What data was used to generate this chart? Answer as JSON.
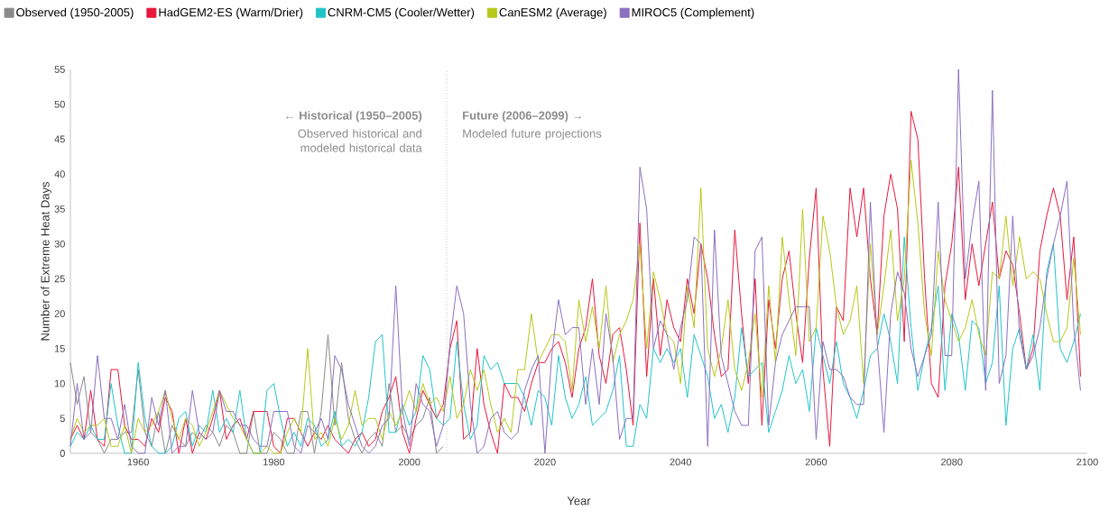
{
  "chart_data": {
    "type": "line",
    "xlabel": "Year",
    "ylabel": "Number of Extreme Heat Days",
    "x": [
      1950,
      1951,
      1952,
      1953,
      1954,
      1955,
      1956,
      1957,
      1958,
      1959,
      1960,
      1961,
      1962,
      1963,
      1964,
      1965,
      1966,
      1967,
      1968,
      1969,
      1970,
      1971,
      1972,
      1973,
      1974,
      1975,
      1976,
      1977,
      1978,
      1979,
      1980,
      1981,
      1982,
      1983,
      1984,
      1985,
      1986,
      1987,
      1988,
      1989,
      1990,
      1991,
      1992,
      1993,
      1994,
      1995,
      1996,
      1997,
      1998,
      1999,
      2000,
      2001,
      2002,
      2003,
      2004,
      2005,
      2006,
      2007,
      2008,
      2009,
      2010,
      2011,
      2012,
      2013,
      2014,
      2015,
      2016,
      2017,
      2018,
      2019,
      2020,
      2021,
      2022,
      2023,
      2024,
      2025,
      2026,
      2027,
      2028,
      2029,
      2030,
      2031,
      2032,
      2033,
      2034,
      2035,
      2036,
      2037,
      2038,
      2039,
      2040,
      2041,
      2042,
      2043,
      2044,
      2045,
      2046,
      2047,
      2048,
      2049,
      2050,
      2051,
      2052,
      2053,
      2054,
      2055,
      2056,
      2057,
      2058,
      2059,
      2060,
      2061,
      2062,
      2063,
      2064,
      2065,
      2066,
      2067,
      2068,
      2069,
      2070,
      2071,
      2072,
      2073,
      2074,
      2075,
      2076,
      2077,
      2078,
      2079,
      2080,
      2081,
      2082,
      2083,
      2084,
      2085,
      2086,
      2087,
      2088,
      2089,
      2090,
      2091,
      2092,
      2093,
      2094,
      2095,
      2096,
      2097,
      2098,
      2099
    ],
    "series": [
      {
        "name": "Observed (1950-2005)",
        "color": "#8a8a8a",
        "x": [
          1950,
          1951,
          1952,
          1953,
          1954,
          1955,
          1956,
          1957,
          1958,
          1959,
          1960,
          1961,
          1962,
          1963,
          1964,
          1965,
          1966,
          1967,
          1968,
          1969,
          1970,
          1971,
          1972,
          1973,
          1974,
          1975,
          1976,
          1977,
          1978,
          1979,
          1980,
          1981,
          1982,
          1983,
          1984,
          1985,
          1986,
          1987,
          1988,
          1989,
          1990,
          1991,
          1992,
          1993,
          1994,
          1995,
          1996,
          1997,
          1998,
          1999,
          2000,
          2001,
          2002,
          2003,
          2004,
          2005
        ],
        "values": [
          13,
          7,
          11,
          3,
          2,
          0,
          2,
          2,
          3,
          3,
          12,
          3,
          1,
          6,
          0,
          4,
          2,
          1,
          3,
          2,
          4,
          3,
          1,
          4,
          3,
          0,
          0,
          6,
          0,
          0,
          3,
          2,
          0,
          0,
          6,
          6,
          0,
          6,
          17,
          4,
          13,
          5,
          2,
          0,
          2,
          3,
          1,
          10,
          3,
          4,
          2,
          4,
          5,
          8,
          0,
          1
        ]
      },
      {
        "name": "HadGEM2-ES (Warm/Drier)",
        "color": "#e8173c",
        "values": [
          2,
          4,
          2,
          9,
          2,
          1,
          12,
          12,
          4,
          2,
          2,
          1,
          5,
          3,
          8,
          6,
          0,
          5,
          0,
          3,
          2,
          5,
          9,
          2,
          4,
          5,
          2,
          6,
          6,
          6,
          1,
          0,
          5,
          5,
          3,
          1,
          3,
          2,
          4,
          2,
          1,
          0,
          2,
          3,
          1,
          2,
          6,
          8,
          11,
          3,
          0,
          5,
          9,
          7,
          5,
          7,
          15,
          19,
          2,
          3,
          15,
          7,
          3,
          0,
          10,
          8,
          8,
          6,
          10,
          13,
          13,
          15,
          16,
          13,
          8,
          15,
          18,
          25,
          14,
          10,
          17,
          18,
          12,
          4,
          33,
          11,
          25,
          14,
          22,
          18,
          16,
          25,
          20,
          30,
          25,
          17,
          11,
          12,
          32,
          20,
          10,
          25,
          4,
          22,
          15,
          25,
          29,
          20,
          13,
          28,
          38,
          12,
          1,
          21,
          19,
          38,
          31,
          38,
          25,
          17,
          34,
          40,
          35,
          16,
          49,
          45,
          25,
          10,
          8,
          24,
          30,
          41,
          22,
          30,
          24,
          30,
          36,
          25,
          29,
          27,
          20,
          12,
          15,
          29,
          34,
          38,
          34,
          22,
          31,
          11
        ]
      },
      {
        "name": "CNRM-CM5 (Cooler/Wetter)",
        "color": "#22c4c8",
        "values": [
          1,
          3,
          2,
          4,
          2,
          2,
          10,
          4,
          0,
          0,
          13,
          5,
          1,
          0,
          0,
          1,
          5,
          6,
          1,
          4,
          3,
          9,
          3,
          5,
          3,
          9,
          2,
          0,
          0,
          9,
          10,
          5,
          1,
          3,
          1,
          5,
          4,
          1,
          2,
          6,
          1,
          2,
          1,
          3,
          8,
          16,
          17,
          3,
          3,
          7,
          4,
          6,
          14,
          12,
          5,
          4,
          5,
          16,
          7,
          2,
          4,
          14,
          12,
          13,
          10,
          10,
          10,
          8,
          4,
          9,
          8,
          4,
          14,
          8,
          5,
          7,
          11,
          4,
          5,
          6,
          9,
          14,
          1,
          1,
          7,
          5,
          15,
          13,
          15,
          13,
          15,
          8,
          17,
          14,
          11,
          5,
          7,
          3,
          8,
          18,
          11,
          12,
          13,
          3,
          6,
          9,
          14,
          10,
          12,
          6,
          18,
          14,
          10,
          16,
          10,
          8,
          5,
          9,
          14,
          15,
          20,
          16,
          10,
          31,
          18,
          9,
          14,
          18,
          24,
          9,
          20,
          17,
          9,
          19,
          18,
          10,
          13,
          24,
          4,
          15,
          18,
          12,
          17,
          9,
          26,
          30,
          15,
          13,
          16,
          20
        ]
      },
      {
        "name": "CanESM2 (Average)",
        "color": "#b5c918",
        "values": [
          2,
          5,
          3,
          4,
          4,
          5,
          1,
          1,
          4,
          0,
          5,
          3,
          4,
          6,
          9,
          5,
          2,
          5,
          4,
          1,
          3,
          6,
          9,
          7,
          5,
          4,
          2,
          0,
          0,
          1,
          0,
          0,
          3,
          5,
          3,
          15,
          2,
          3,
          1,
          5,
          2,
          4,
          9,
          4,
          5,
          5,
          2,
          6,
          4,
          6,
          9,
          6,
          10,
          7,
          8,
          6,
          11,
          5,
          7,
          12,
          9,
          12,
          7,
          3,
          5,
          3,
          12,
          12,
          20,
          13,
          15,
          17,
          17,
          16,
          9,
          22,
          16,
          21,
          15,
          24,
          13,
          17,
          19,
          22,
          30,
          15,
          26,
          22,
          17,
          16,
          10,
          24,
          18,
          38,
          15,
          11,
          15,
          22,
          12,
          9,
          13,
          20,
          8,
          24,
          13,
          31,
          22,
          14,
          35,
          16,
          18,
          34,
          29,
          21,
          17,
          19,
          24,
          10,
          30,
          17,
          24,
          32,
          19,
          25,
          42,
          33,
          20,
          14,
          29,
          22,
          19,
          16,
          18,
          22,
          17,
          14,
          26,
          25,
          34,
          24,
          31,
          25,
          26,
          25,
          20,
          16,
          16,
          18,
          28,
          17
        ]
      },
      {
        "name": "MIROC5 (Complement)",
        "color": "#8b6fc0",
        "values": [
          1,
          10,
          2,
          3,
          14,
          5,
          5,
          2,
          7,
          1,
          0,
          0,
          8,
          4,
          9,
          0,
          1,
          1,
          9,
          3,
          2,
          3,
          9,
          6,
          6,
          4,
          4,
          2,
          1,
          1,
          6,
          6,
          6,
          1,
          0,
          4,
          3,
          5,
          2,
          14,
          12,
          7,
          4,
          1,
          0,
          1,
          4,
          5,
          24,
          6,
          1,
          10,
          7,
          6,
          1,
          4,
          16,
          24,
          20,
          7,
          0,
          1,
          5,
          6,
          3,
          2,
          3,
          9,
          12,
          14,
          0,
          14,
          22,
          17,
          18,
          18,
          7,
          15,
          7,
          20,
          14,
          2,
          5,
          5,
          41,
          35,
          15,
          19,
          17,
          12,
          18,
          22,
          31,
          30,
          1,
          32,
          14,
          10,
          6,
          4,
          4,
          29,
          31,
          4,
          13,
          17,
          19,
          21,
          21,
          21,
          2,
          16,
          12,
          12,
          11,
          8,
          7,
          7,
          36,
          16,
          3,
          20,
          26,
          23,
          15,
          11,
          14,
          17,
          36,
          14,
          14,
          55,
          25,
          33,
          39,
          9,
          52,
          10,
          14,
          34,
          17,
          12,
          14,
          18,
          25,
          30,
          34,
          39,
          18,
          9
        ]
      }
    ],
    "xlim": [
      1950,
      2100
    ],
    "xticks": [
      1960,
      1980,
      2000,
      2020,
      2040,
      2060,
      2080,
      2100
    ],
    "ylim": [
      0,
      55
    ],
    "yticks": [
      0,
      5,
      10,
      15,
      20,
      25,
      30,
      35,
      40,
      45,
      50,
      55
    ],
    "ref_lines": [
      {
        "axis": "x",
        "value": 2005.5,
        "line_style": "dotted",
        "color": "#c8c8c8"
      }
    ],
    "annotations": [
      "← Historical (1950–2005)",
      "Observed historical and modeled historical data",
      "Future (2006–2099) →",
      "Modeled future projections"
    ],
    "legend": "top",
    "marker": "none",
    "line_style": "solid"
  }
}
